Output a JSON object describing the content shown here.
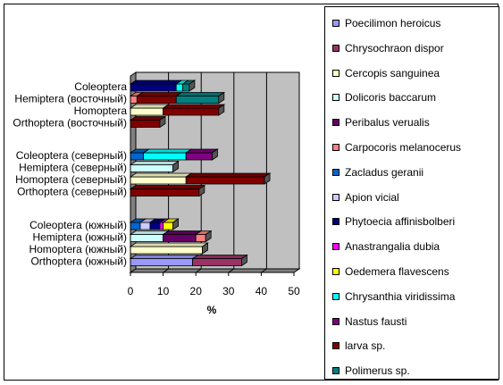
{
  "chart_data": {
    "type": "bar",
    "orientation": "horizontal",
    "stacked": true,
    "three_d": true,
    "xlabel": "%",
    "xlim": [
      0,
      50
    ],
    "x_ticks": [
      "0",
      "10",
      "20",
      "30",
      "40",
      "50"
    ],
    "grid": true,
    "legend_position": "right",
    "categories": [
      "Coleoptera",
      "Hemiptera (восточный)",
      "Homoptera",
      "Orthoptera (восточный)",
      "Coleoptera (северный)",
      "Hemiptera (северный)",
      "Homoptera (северный)",
      "Orthoptera (северный)",
      "Coleoptera (южный)",
      "Hemiptera (южный)",
      "Homoptera (южный)",
      "Orthoptera (южный)"
    ],
    "series": [
      {
        "name": "Poecilimon heroicus",
        "color": "#9999ff",
        "values": [
          0,
          0,
          0,
          0,
          0,
          0,
          0,
          0,
          0,
          0,
          0,
          19
        ]
      },
      {
        "name": "Chrysochraon dispor",
        "color": "#993366",
        "values": [
          0,
          0,
          0,
          0,
          0,
          0,
          0,
          0,
          0,
          0,
          0,
          15
        ]
      },
      {
        "name": "Cercopis sanguinea",
        "color": "#ffffcc",
        "values": [
          0,
          0,
          10,
          0,
          0,
          0,
          17,
          0,
          0,
          0,
          22,
          0
        ]
      },
      {
        "name": "Dolicoris baccarum",
        "color": "#ccffff",
        "values": [
          0,
          0,
          0,
          0,
          0,
          13,
          0,
          0,
          0,
          10,
          0,
          0
        ]
      },
      {
        "name": "Peribalus verualis",
        "color": "#660066",
        "values": [
          0,
          0,
          0,
          0,
          0,
          0,
          0,
          0,
          0,
          10,
          0,
          0
        ]
      },
      {
        "name": "Carpocoris melanocerus",
        "color": "#ff8080",
        "values": [
          0,
          2,
          0,
          0,
          0,
          0,
          0,
          0,
          0,
          3,
          0,
          0
        ]
      },
      {
        "name": "Zacladus geranii",
        "color": "#0066cc",
        "values": [
          0,
          0,
          0,
          0,
          4,
          0,
          0,
          0,
          3,
          0,
          0,
          0
        ]
      },
      {
        "name": "Apion vicial",
        "color": "#ccccff",
        "values": [
          0,
          0,
          0,
          0,
          0,
          0,
          0,
          0,
          3,
          0,
          0,
          0
        ]
      },
      {
        "name": "Phytoecia affinisbolberi",
        "color": "#000080",
        "values": [
          14,
          0,
          0,
          0,
          0,
          0,
          0,
          0,
          3,
          0,
          0,
          0
        ]
      },
      {
        "name": "Anastrangalia dubia",
        "color": "#ff00ff",
        "values": [
          0,
          0,
          0,
          0,
          0,
          0,
          0,
          0,
          1,
          0,
          0,
          0
        ]
      },
      {
        "name": "Oedemera flavescens",
        "color": "#ffff00",
        "values": [
          0,
          0,
          0,
          0,
          0,
          0,
          0,
          0,
          3,
          0,
          0,
          0
        ]
      },
      {
        "name": "Chrysanthia viridissima",
        "color": "#00ffff",
        "values": [
          2,
          0,
          0,
          0,
          13,
          0,
          0,
          0,
          0,
          0,
          0,
          0
        ]
      },
      {
        "name": "Nastus fausti",
        "color": "#800080",
        "values": [
          0,
          0,
          0,
          0,
          8,
          0,
          0,
          0,
          0,
          0,
          0,
          0
        ]
      },
      {
        "name": "larva sp.",
        "color": "#800000",
        "values": [
          0,
          12,
          17,
          9,
          0,
          0,
          24,
          21,
          0,
          0,
          0,
          0
        ]
      },
      {
        "name": "Polimerus sp.",
        "color": "#008080",
        "values": [
          2,
          13,
          0,
          0,
          0,
          0,
          0,
          0,
          0,
          0,
          0,
          0
        ]
      }
    ]
  },
  "colors": {
    "wall": "#c0c0c0",
    "floor": "#808080",
    "gridline": "#000000"
  }
}
